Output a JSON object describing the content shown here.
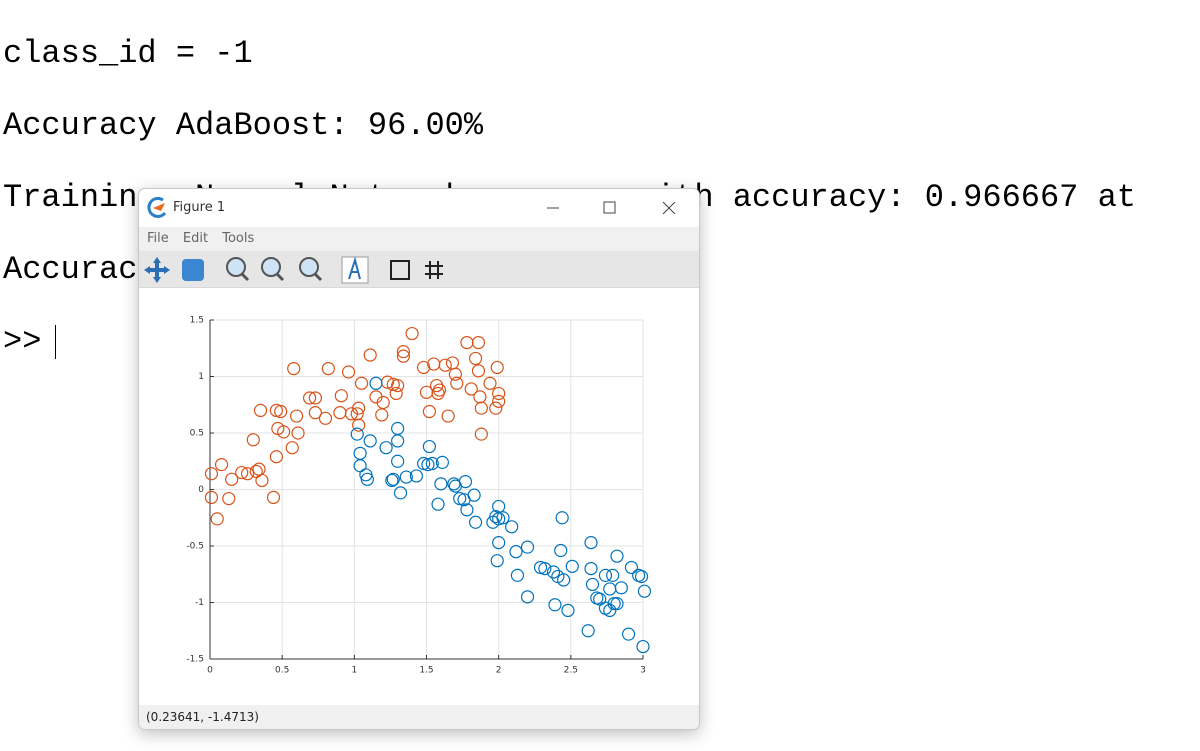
{
  "console": {
    "lines": [
      "class_id = -1",
      "Accuracy AdaBoost: 96.00%",
      "Training: Neural Network success with accuracy: 0.966667 at",
      "Accuracy Neural Network: 90.00%"
    ],
    "prompt": ">>"
  },
  "window": {
    "title": "Figure 1",
    "menu": [
      "File",
      "Edit",
      "Tools"
    ],
    "status": "(0.23641, -1.4713)"
  },
  "chart_data": {
    "type": "scatter",
    "xlim": [
      0,
      3
    ],
    "ylim": [
      -1.5,
      1.5
    ],
    "xticks": [
      0,
      0.5,
      1,
      1.5,
      2,
      2.5,
      3
    ],
    "yticks": [
      -1.5,
      -1,
      -0.5,
      0,
      0.5,
      1,
      1.5
    ],
    "grid": true,
    "series": [
      {
        "color": "#D95319",
        "x": [
          0.01,
          0.08,
          0.01,
          0.13,
          0.05,
          0.15,
          0.22,
          0.26,
          0.32,
          0.34,
          0.36,
          0.3,
          0.35,
          0.46,
          0.49,
          0.47,
          0.51,
          0.46,
          0.44,
          0.57,
          0.61,
          0.6,
          0.58,
          0.69,
          0.73,
          0.73,
          0.8,
          0.82,
          0.9,
          0.91,
          0.96,
          0.98,
          1.02,
          1.03,
          1.03,
          1.05,
          1.11,
          1.15,
          1.19,
          1.2,
          1.23,
          1.27,
          1.29,
          1.3,
          1.34,
          1.34,
          1.4,
          1.48,
          1.5,
          1.52,
          1.55,
          1.57,
          1.58,
          1.59,
          1.63,
          1.65,
          1.68,
          1.7,
          1.71,
          1.78,
          1.81,
          1.84,
          1.86,
          1.86,
          1.87,
          1.88,
          1.88,
          1.94,
          1.99,
          1.98,
          2.0,
          2.0
        ],
        "values": [
          0.14,
          0.22,
          -0.07,
          -0.08,
          -0.26,
          0.09,
          0.15,
          0.14,
          0.16,
          0.18,
          0.08,
          0.44,
          0.7,
          0.7,
          0.69,
          0.54,
          0.51,
          0.29,
          -0.07,
          0.37,
          0.5,
          0.65,
          1.07,
          0.81,
          0.81,
          0.68,
          0.63,
          1.07,
          0.68,
          0.83,
          1.04,
          0.67,
          0.67,
          0.57,
          0.72,
          0.94,
          1.19,
          0.82,
          0.66,
          0.77,
          0.95,
          0.93,
          0.85,
          0.92,
          1.22,
          1.18,
          1.38,
          1.08,
          0.86,
          0.69,
          1.11,
          0.92,
          0.85,
          0.88,
          1.1,
          0.65,
          1.12,
          1.02,
          0.94,
          1.3,
          0.89,
          1.16,
          1.05,
          1.3,
          0.82,
          0.49,
          0.72,
          0.94,
          1.08,
          0.72,
          0.85,
          0.78
        ]
      },
      {
        "color": "#0072BD",
        "x": [
          1.02,
          1.04,
          1.04,
          1.08,
          1.09,
          1.11,
          1.15,
          1.22,
          1.26,
          1.27,
          1.3,
          1.3,
          1.3,
          1.32,
          1.36,
          1.43,
          1.48,
          1.52,
          1.51,
          1.54,
          1.61,
          1.6,
          1.58,
          1.69,
          1.7,
          1.77,
          1.73,
          1.76,
          1.78,
          1.83,
          1.84,
          1.96,
          1.98,
          2.0,
          2.0,
          2.03,
          2.0,
          1.99,
          2.09,
          2.12,
          2.13,
          2.2,
          2.2,
          2.29,
          2.32,
          2.38,
          2.41,
          2.44,
          2.43,
          2.45,
          2.51,
          2.39,
          2.48,
          2.62,
          2.64,
          2.64,
          2.65,
          2.68,
          2.7,
          2.74,
          2.79,
          2.82,
          2.77,
          2.74,
          2.77,
          2.8,
          2.82,
          2.85,
          2.92,
          2.97,
          2.99,
          3.01,
          2.9,
          3.0
        ],
        "values": [
          0.49,
          0.32,
          0.21,
          0.13,
          0.09,
          0.43,
          0.94,
          0.37,
          0.08,
          0.09,
          0.54,
          0.43,
          0.25,
          -0.03,
          0.11,
          0.12,
          0.23,
          0.38,
          0.22,
          0.23,
          0.24,
          0.05,
          -0.13,
          0.05,
          0.03,
          0.07,
          -0.08,
          -0.09,
          -0.18,
          -0.05,
          -0.29,
          -0.29,
          -0.24,
          -0.15,
          -0.26,
          -0.25,
          -0.47,
          -0.63,
          -0.33,
          -0.55,
          -0.76,
          -0.51,
          -0.95,
          -0.69,
          -0.7,
          -0.73,
          -0.77,
          -0.25,
          -0.54,
          -0.8,
          -0.68,
          -1.02,
          -1.07,
          -1.25,
          -0.47,
          -0.7,
          -0.84,
          -0.96,
          -0.97,
          -0.76,
          -0.76,
          -0.59,
          -0.88,
          -1.05,
          -1.07,
          -1.01,
          -1.01,
          -0.87,
          -0.69,
          -0.76,
          -0.77,
          -0.9,
          -1.28,
          -1.39
        ]
      }
    ]
  }
}
